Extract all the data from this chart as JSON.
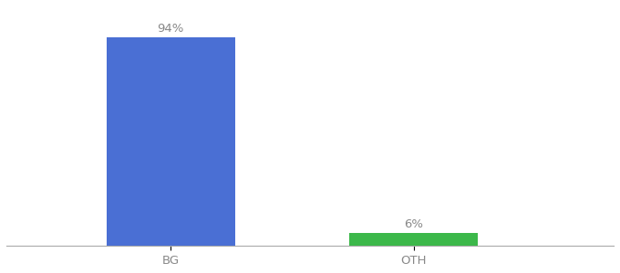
{
  "categories": [
    "BG",
    "OTH"
  ],
  "values": [
    94,
    6
  ],
  "bar_colors": [
    "#4a6fd4",
    "#3cb84a"
  ],
  "label_texts": [
    "94%",
    "6%"
  ],
  "background_color": "#ffffff",
  "ylim": [
    0,
    108
  ],
  "bar_width": 0.18,
  "label_fontsize": 9.5,
  "tick_fontsize": 9.5,
  "x_positions": [
    0.28,
    0.62
  ]
}
